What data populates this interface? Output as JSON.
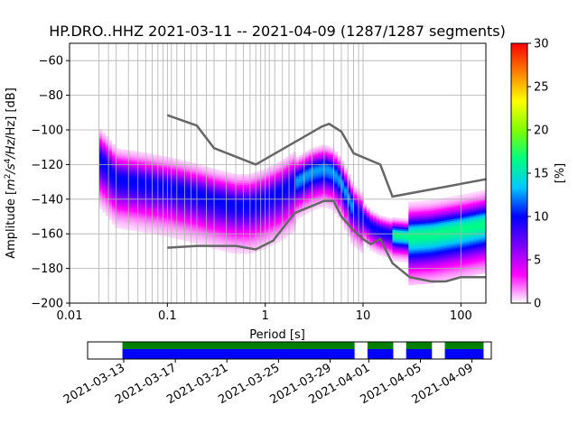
{
  "chart_data": {
    "type": "heatmap",
    "title": "HP.DRO..HHZ   2021-03-11 -- 2021-04-09  (1287/1287 segments)",
    "xlabel": "Period [s]",
    "ylabel_pre": "Amplitude [",
    "ylabel_math": "m",
    "ylabel_sup1": "2",
    "ylabel_mid": "/s",
    "ylabel_sup2": "4",
    "ylabel_post": "/Hz] [dB]",
    "xscale": "log",
    "xlim": [
      0.01,
      180
    ],
    "ylim": [
      -200,
      -50
    ],
    "x_ticks": [
      {
        "value": 0.01,
        "label": "0.01"
      },
      {
        "value": 0.1,
        "label": "0.1"
      },
      {
        "value": 1,
        "label": "1"
      },
      {
        "value": 10,
        "label": "10"
      },
      {
        "value": 100,
        "label": "100"
      }
    ],
    "y_ticks": [
      {
        "value": -60,
        "label": "−60"
      },
      {
        "value": -80,
        "label": "−80"
      },
      {
        "value": -100,
        "label": "−100"
      },
      {
        "value": -120,
        "label": "−120"
      },
      {
        "value": -140,
        "label": "−140"
      },
      {
        "value": -160,
        "label": "−160"
      },
      {
        "value": -180,
        "label": "−180"
      },
      {
        "value": -200,
        "label": "−200"
      }
    ],
    "colorbar": {
      "label": "[%]",
      "range": [
        0,
        30
      ],
      "ticks": [
        {
          "value": 0,
          "label": "0"
        },
        {
          "value": 5,
          "label": "5"
        },
        {
          "value": 10,
          "label": "10"
        },
        {
          "value": 15,
          "label": "15"
        },
        {
          "value": 20,
          "label": "20"
        },
        {
          "value": 25,
          "label": "25"
        },
        {
          "value": 30,
          "label": "30"
        }
      ],
      "colors": [
        "#ffffff",
        "#ff00ff",
        "#7a00ff",
        "#0000ff",
        "#00c8ff",
        "#00ff80",
        "#80ff00",
        "#ffff00",
        "#ff8000",
        "#ff0000"
      ]
    },
    "period_grid": [
      0.02,
      0.025,
      0.03,
      0.04,
      0.05,
      0.06,
      0.07,
      0.08,
      0.09,
      0.11,
      0.125,
      0.15,
      0.175,
      0.2,
      0.25,
      0.3,
      0.4,
      0.5,
      0.6,
      0.7,
      0.8,
      0.9,
      1.1,
      1.25,
      1.5,
      1.75,
      2,
      2.5,
      3,
      4,
      5,
      6,
      7,
      8,
      9
    ],
    "pdf_mode": {
      "period": [
        0.02,
        0.025,
        0.03,
        0.05,
        0.1,
        0.2,
        0.3,
        0.5,
        0.7,
        1,
        1.5,
        2,
        3,
        4,
        5,
        6,
        7,
        8,
        10,
        12,
        15,
        20,
        30,
        50,
        100,
        180
      ],
      "amplitude": [
        -116,
        -122,
        -128,
        -130,
        -133,
        -137,
        -140,
        -143,
        -143,
        -140,
        -135,
        -130,
        -124,
        -122,
        -124,
        -130,
        -138,
        -145,
        -150,
        -155,
        -158,
        -160,
        -161,
        -160,
        -157,
        -154
      ]
    },
    "series": [
      {
        "period": [
          0.1,
          0.2,
          0.3,
          0.8,
          3.8,
          4.5,
          6,
          8,
          15,
          20,
          180
        ],
        "amplitude": [
          -91.5,
          -97.5,
          -110.5,
          -120,
          -98,
          -96.5,
          -101,
          -113.5,
          -120,
          -138.5,
          -128.5
        ]
      },
      {
        "period": [
          0.1,
          0.2,
          0.5,
          0.8,
          1.2,
          2,
          4,
          5,
          6,
          8,
          10,
          12,
          15,
          20,
          30,
          50,
          70,
          100,
          180
        ],
        "amplitude": [
          -168,
          -167,
          -167,
          -169,
          -164,
          -148,
          -141,
          -141,
          -150,
          -158,
          -163,
          -166,
          -163,
          -177,
          -185,
          -187.5,
          -187.5,
          -185,
          -185
        ]
      }
    ],
    "timeline": {
      "start": "2021-03-11",
      "end": "2021-04-09",
      "ticks": [
        "2021-03-13",
        "2021-03-17",
        "2021-03-21",
        "2021-03-25",
        "2021-03-29",
        "2021-04-01",
        "2021-04-05",
        "2021-04-09"
      ],
      "coverage": [
        [
          "2021-03-13",
          "2021-03-31"
        ],
        [
          "2021-04-01",
          "2021-04-03"
        ],
        [
          "2021-04-04",
          "2021-04-06"
        ],
        [
          "2021-04-07",
          "2021-04-10"
        ]
      ]
    }
  }
}
